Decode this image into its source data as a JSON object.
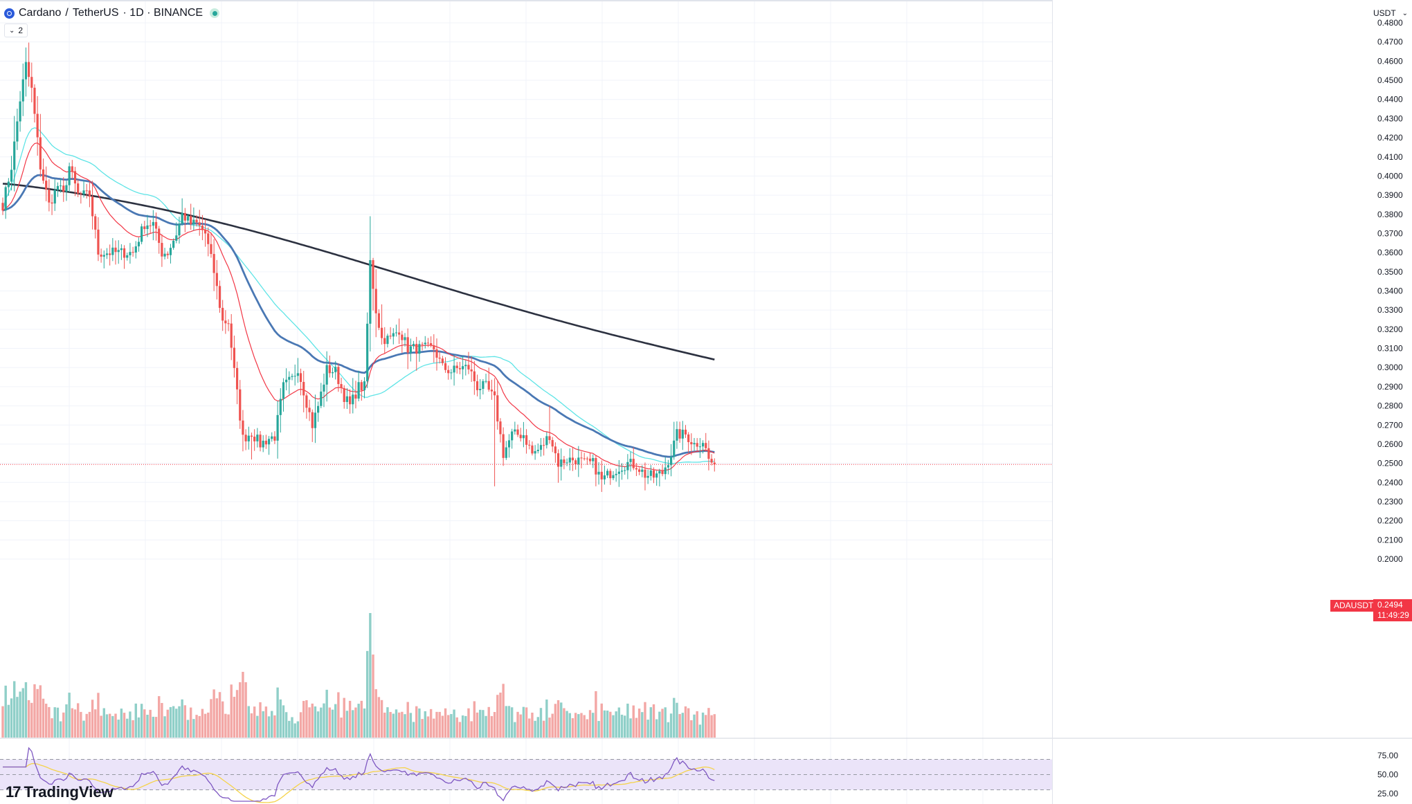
{
  "header": {
    "base": "Cardano",
    "separator": "/",
    "quote": "TetherUS",
    "meta": "· 1D · BINANCE",
    "indicator_count": "2"
  },
  "currency_menu": {
    "label": "USDT",
    "chevron": "chevron-down-icon"
  },
  "price_scale": {
    "min": 0.2,
    "max": 0.48,
    "labels": [
      "0.4800",
      "0.4700",
      "0.4600",
      "0.4500",
      "0.4400",
      "0.4300",
      "0.4200",
      "0.4100",
      "0.4000",
      "0.3900",
      "0.3800",
      "0.3700",
      "0.3600",
      "0.3500",
      "0.3400",
      "0.3300",
      "0.3200",
      "0.3100",
      "0.3000",
      "0.2900",
      "0.2800",
      "0.2700",
      "0.2600",
      "0.2500",
      "0.2400",
      "0.2300",
      "0.2200",
      "0.2100",
      "0.2000"
    ]
  },
  "last_price": {
    "symbol": "ADAUSDT",
    "price": "0.2494",
    "countdown": "11:49:29",
    "value": 0.2494
  },
  "rsi_scale": {
    "labels": [
      "75.00",
      "50.00",
      "25.00"
    ],
    "upper": 70,
    "lower": 30
  },
  "branding": {
    "name": "TradingView"
  },
  "colors": {
    "up": "#26a69a",
    "down": "#ef5350",
    "ma_short": "#f23645",
    "ma_mid": "#4a78b4",
    "ma_cyan": "#5ee4e6",
    "ma_long": "#2c3140",
    "vol_up": "#8fcfc8",
    "vol_down": "#f3a7a5",
    "rsi": "#7e57c2",
    "rsi_ma": "#f5d34a",
    "rsi_band": "#ebe4f9"
  },
  "chart_data": {
    "type": "candlestick",
    "interval": "1D",
    "keyframes": [
      [
        0,
        0.385
      ],
      [
        3,
        0.405
      ],
      [
        6,
        0.44
      ],
      [
        8,
        0.458
      ],
      [
        10,
        0.445
      ],
      [
        13,
        0.405
      ],
      [
        16,
        0.385
      ],
      [
        19,
        0.395
      ],
      [
        21,
        0.39
      ],
      [
        23,
        0.405
      ],
      [
        26,
        0.39
      ],
      [
        30,
        0.39
      ],
      [
        33,
        0.36
      ],
      [
        38,
        0.36
      ],
      [
        41,
        0.36
      ],
      [
        45,
        0.36
      ],
      [
        49,
        0.375
      ],
      [
        52,
        0.375
      ],
      [
        55,
        0.36
      ],
      [
        57,
        0.36
      ],
      [
        60,
        0.37
      ],
      [
        62,
        0.38
      ],
      [
        65,
        0.375
      ],
      [
        67,
        0.375
      ],
      [
        70,
        0.37
      ],
      [
        73,
        0.35
      ],
      [
        76,
        0.324
      ],
      [
        78,
        0.324
      ],
      [
        80,
        0.298
      ],
      [
        83,
        0.263
      ],
      [
        86,
        0.266
      ],
      [
        89,
        0.26
      ],
      [
        92,
        0.263
      ],
      [
        94,
        0.264
      ],
      [
        97,
        0.29
      ],
      [
        100,
        0.294
      ],
      [
        102,
        0.3
      ],
      [
        105,
        0.282
      ],
      [
        107,
        0.27
      ],
      [
        109,
        0.28
      ],
      [
        112,
        0.299
      ],
      [
        115,
        0.298
      ],
      [
        118,
        0.285
      ],
      [
        120,
        0.28
      ],
      [
        123,
        0.29
      ],
      [
        125,
        0.29
      ],
      [
        127,
        0.355
      ],
      [
        129,
        0.33
      ],
      [
        131,
        0.315
      ],
      [
        134,
        0.315
      ],
      [
        137,
        0.32
      ],
      [
        140,
        0.31
      ],
      [
        143,
        0.31
      ],
      [
        146,
        0.31
      ],
      [
        149,
        0.31
      ],
      [
        152,
        0.3
      ],
      [
        155,
        0.298
      ],
      [
        158,
        0.3
      ],
      [
        161,
        0.3
      ],
      [
        164,
        0.29
      ],
      [
        167,
        0.29
      ],
      [
        170,
        0.283
      ],
      [
        173,
        0.255
      ],
      [
        176,
        0.265
      ],
      [
        180,
        0.265
      ],
      [
        183,
        0.255
      ],
      [
        186,
        0.258
      ],
      [
        189,
        0.265
      ],
      [
        192,
        0.25
      ],
      [
        195,
        0.252
      ],
      [
        198,
        0.252
      ],
      [
        201,
        0.25
      ],
      [
        204,
        0.25
      ],
      [
        207,
        0.241
      ],
      [
        210,
        0.245
      ],
      [
        213,
        0.248
      ],
      [
        216,
        0.25
      ],
      [
        219,
        0.249
      ],
      [
        222,
        0.244
      ],
      [
        225,
        0.243
      ],
      [
        228,
        0.245
      ],
      [
        231,
        0.255
      ],
      [
        233,
        0.265
      ],
      [
        236,
        0.265
      ],
      [
        239,
        0.26
      ],
      [
        242,
        0.262
      ],
      [
        244,
        0.252
      ],
      [
        246,
        0.249
      ]
    ],
    "days": 247,
    "ma_short_period": 20,
    "ma_mid_period": 50,
    "ma_cyan_period": 50,
    "ma_long_period": 200,
    "rsi_period": 14
  }
}
